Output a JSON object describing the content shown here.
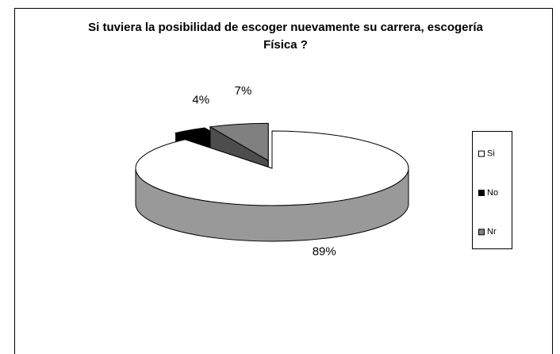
{
  "chart_data": {
    "type": "pie3d",
    "title": "Si tuviera la posibilidad de escoger nuevamente su carrera, escogería Física ?",
    "categories": [
      "Si",
      "No",
      "Nr"
    ],
    "values": [
      89,
      4,
      7
    ],
    "value_labels": [
      "89%",
      "4%",
      "7%"
    ],
    "colors": [
      "#ffffff",
      "#000000",
      "#808080"
    ],
    "legend": "right"
  }
}
